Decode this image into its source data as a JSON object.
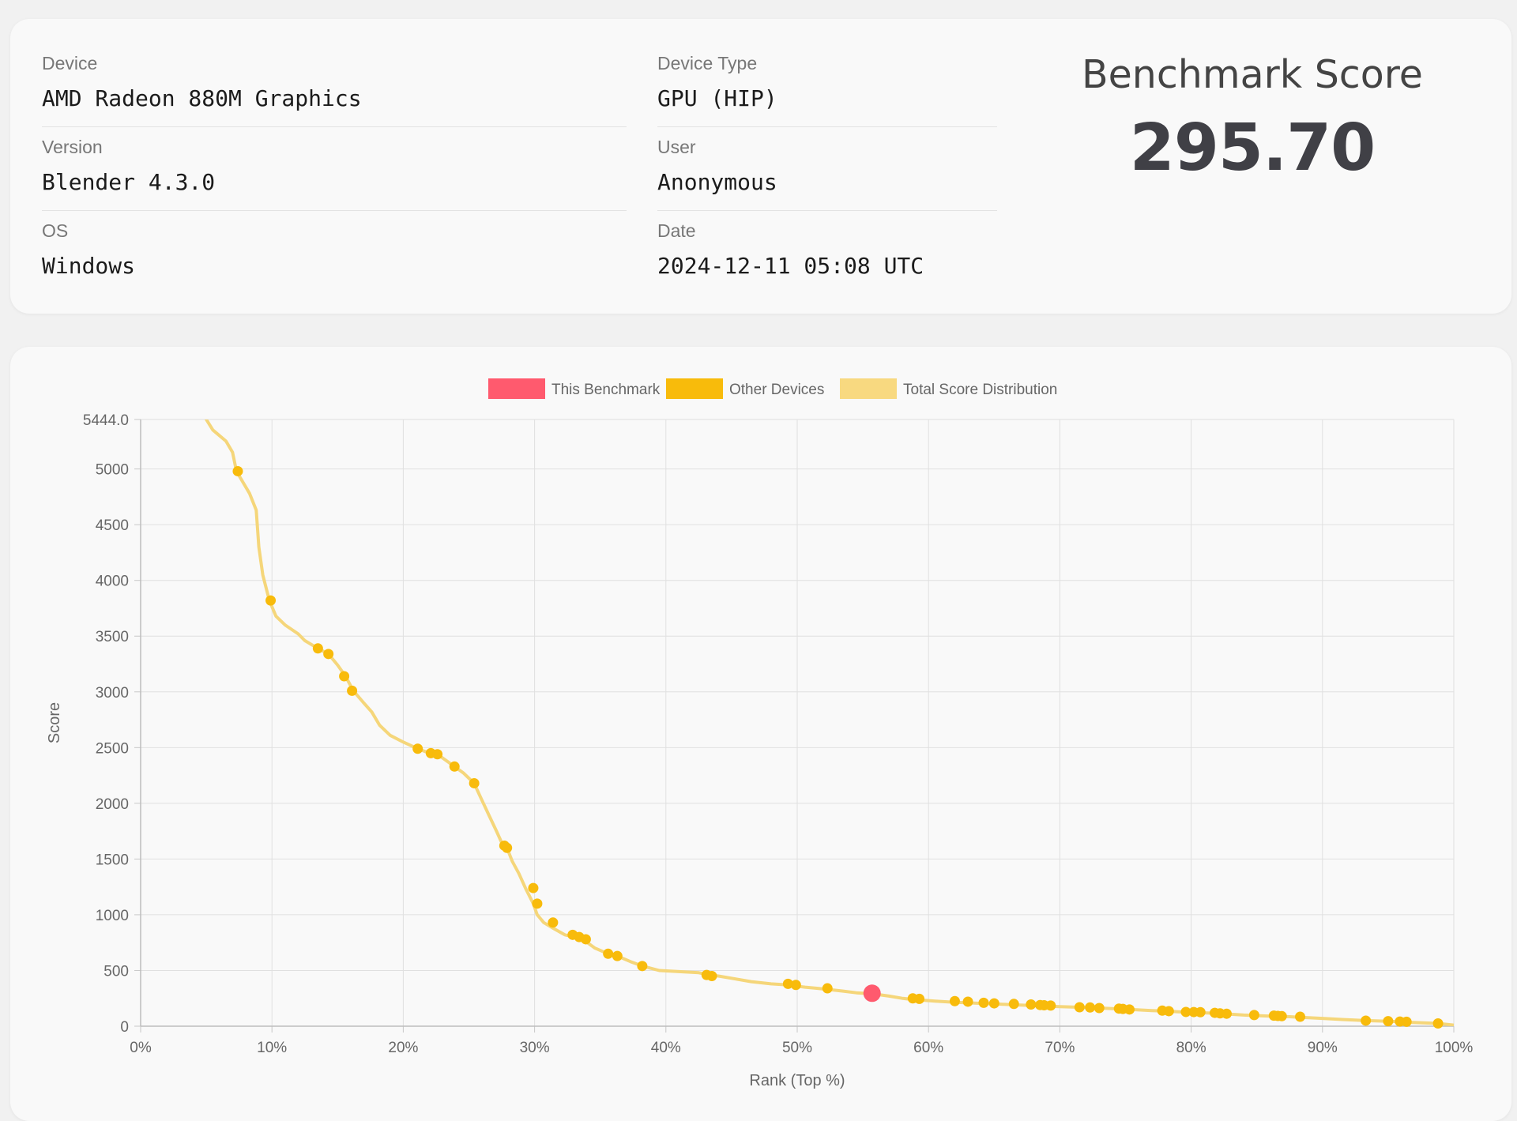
{
  "info": {
    "device_label": "Device",
    "device_value": "AMD Radeon 880M Graphics",
    "version_label": "Version",
    "version_value": "Blender 4.3.0",
    "os_label": "OS",
    "os_value": "Windows",
    "device_type_label": "Device Type",
    "device_type_value": "GPU (HIP)",
    "user_label": "User",
    "user_value": "Anonymous",
    "date_label": "Date",
    "date_value": "2024-12-11 05:08 UTC"
  },
  "score": {
    "title": "Benchmark Score",
    "value": "295.70"
  },
  "chart_data": {
    "type": "scatter",
    "xlabel": "Rank (Top %)",
    "ylabel": "Score",
    "xlim": [
      0,
      100
    ],
    "ylim": [
      0,
      5444.0
    ],
    "x_ticks": [
      "0%",
      "10%",
      "20%",
      "30%",
      "40%",
      "50%",
      "60%",
      "70%",
      "80%",
      "90%",
      "100%"
    ],
    "y_ticks": [
      "0",
      "500",
      "1000",
      "1500",
      "2000",
      "2500",
      "3000",
      "3500",
      "4000",
      "4500",
      "5000",
      "5444.0"
    ],
    "y_tick_values": [
      0,
      500,
      1000,
      1500,
      2000,
      2500,
      3000,
      3500,
      4000,
      4500,
      5000,
      5444
    ],
    "grid": true,
    "legend": {
      "position": "top-center",
      "entries": [
        {
          "label": "This Benchmark",
          "color": "#ff5a6e"
        },
        {
          "label": "Other Devices",
          "color": "#f8bb0b"
        },
        {
          "label": "Total Score Distribution",
          "color": "#f8d980"
        }
      ]
    },
    "series": [
      {
        "name": "Total Score Distribution",
        "kind": "line",
        "color": "#f5d67a",
        "x": [
          5,
          5.5,
          6.5,
          7.0,
          7.3,
          7.8,
          8.3,
          8.8,
          9.0,
          9.3,
          9.8,
          10.3,
          11.0,
          12.0,
          12.5,
          13.5,
          14.3,
          15.0,
          15.6,
          16.2,
          17.0,
          17.6,
          18.2,
          19.0,
          20.0,
          21.1,
          22.0,
          22.6,
          23.9,
          24.6,
          25.4,
          25.9,
          26.5,
          27.1,
          27.6,
          27.9,
          28.3,
          28.8,
          29.3,
          29.9,
          30.2,
          30.7,
          31.4,
          32.3,
          33.0,
          33.4,
          33.9,
          34.6,
          35.6,
          36.3,
          37.3,
          38.2,
          39.5,
          41.0,
          42.5,
          43.3,
          44.0,
          45.0,
          46.5,
          48.0,
          49.3,
          49.9,
          50.6,
          51.5,
          52.3,
          53.5,
          54.5,
          55.8,
          57.0,
          58.0,
          58.8,
          59.3,
          60.5,
          62.0,
          63.0,
          64.0,
          65.0,
          66.0,
          67.0,
          68.0,
          69.0,
          70.0,
          71.5,
          72.3,
          73.0,
          74.0,
          74.8,
          75.3,
          77.0,
          78.3,
          79.0,
          80.0,
          81.0,
          82.0,
          82.7,
          84.0,
          85.0,
          86.0,
          86.7,
          87.5,
          88.3,
          90.0,
          91.5,
          93.3,
          95.0,
          96.0,
          96.7,
          98.8,
          100
        ],
        "y": [
          5444,
          5350,
          5250,
          5150,
          4980,
          4880,
          4780,
          4630,
          4300,
          4050,
          3820,
          3680,
          3600,
          3520,
          3460,
          3390,
          3340,
          3240,
          3140,
          3010,
          2900,
          2820,
          2700,
          2610,
          2550,
          2490,
          2450,
          2440,
          2330,
          2270,
          2180,
          2050,
          1900,
          1750,
          1620,
          1600,
          1480,
          1370,
          1240,
          1100,
          1000,
          930,
          880,
          820,
          800,
          780,
          760,
          700,
          650,
          630,
          580,
          540,
          500,
          490,
          480,
          460,
          450,
          430,
          400,
          380,
          370,
          360,
          350,
          340,
          330,
          315,
          300,
          290,
          270,
          250,
          240,
          235,
          225,
          215,
          210,
          205,
          200,
          195,
          190,
          185,
          180,
          175,
          170,
          168,
          163,
          158,
          155,
          150,
          140,
          135,
          130,
          125,
          120,
          115,
          110,
          100,
          95,
          90,
          88,
          85,
          80,
          70,
          60,
          50,
          45,
          40,
          35,
          25,
          10
        ]
      },
      {
        "name": "Other Devices",
        "kind": "points",
        "color": "#f8bb0b",
        "x": [
          7.4,
          9.9,
          13.5,
          14.3,
          15.5,
          16.1,
          21.1,
          22.1,
          22.6,
          23.9,
          25.4,
          27.7,
          27.9,
          29.9,
          30.2,
          31.4,
          32.9,
          33.4,
          33.9,
          35.6,
          36.3,
          38.2,
          43.1,
          43.5,
          49.3,
          49.9,
          52.3,
          58.8,
          59.3,
          62.0,
          63.0,
          64.2,
          65.0,
          66.5,
          67.8,
          68.5,
          68.8,
          69.3,
          71.5,
          72.3,
          73.0,
          74.5,
          74.8,
          75.3,
          77.8,
          78.3,
          79.6,
          80.2,
          80.7,
          81.8,
          82.2,
          82.7,
          84.8,
          86.3,
          86.6,
          86.9,
          88.3,
          93.3,
          95.0,
          95.9,
          96.4,
          98.8
        ],
        "y": [
          4980,
          3820,
          3390,
          3340,
          3140,
          3010,
          2490,
          2450,
          2440,
          2330,
          2180,
          1620,
          1600,
          1240,
          1100,
          930,
          820,
          800,
          780,
          650,
          630,
          540,
          460,
          450,
          380,
          370,
          340,
          250,
          245,
          225,
          220,
          210,
          205,
          200,
          195,
          190,
          188,
          185,
          170,
          168,
          163,
          158,
          155,
          150,
          140,
          135,
          128,
          127,
          126,
          120,
          115,
          112,
          100,
          95,
          92,
          90,
          85,
          50,
          45,
          42,
          40,
          25
        ]
      },
      {
        "name": "This Benchmark",
        "kind": "points",
        "color": "#ff5a6e",
        "x": [
          55.7
        ],
        "y": [
          295.7
        ]
      }
    ]
  }
}
